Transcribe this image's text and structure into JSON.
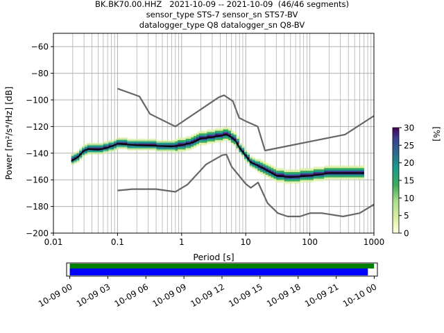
{
  "title_lines": [
    "BK.BK70.00.HHZ   2021-10-09 -- 2021-10-09  (46/46 segments)",
    "sensor_type STS-7 sensor_sn STS7-BV",
    "datalogger_type Q8 datalogger_sn Q8-BV"
  ],
  "chart_data": [
    {
      "type": "heatmap",
      "xlabel": "Period [s]",
      "ylabel": "Power [m²/s⁴/Hz] [dB]",
      "xscale": "log",
      "xlim": [
        0.01,
        1000
      ],
      "ylim": [
        -200,
        -50
      ],
      "x_ticks": [
        0.01,
        0.1,
        1,
        10,
        100,
        1000
      ],
      "x_tick_labels": [
        "0.01",
        "0.1",
        "1",
        "10",
        "100",
        "1000"
      ],
      "y_ticks": [
        -200,
        -180,
        -160,
        -140,
        -120,
        -100,
        -80,
        -60
      ],
      "y_tick_labels": [
        "−200",
        "−180",
        "−160",
        "−140",
        "−120",
        "−100",
        "−80",
        "−60"
      ],
      "grid": true,
      "colorbar": {
        "label": "[%]",
        "range": [
          0,
          30
        ],
        "ticks": [
          0,
          5,
          10,
          15,
          20,
          25,
          30
        ],
        "tick_labels": [
          "0",
          "5",
          "10",
          "15",
          "20",
          "25",
          "30"
        ],
        "colormap": [
          "#ffffe0",
          "#d9f0a3",
          "#addd8e",
          "#41ab5d",
          "#1d9e8a",
          "#2c6f8e",
          "#3b3f8f",
          "#440154"
        ]
      },
      "series": [
        {
          "name": "",
          "role": "median",
          "color": "#000000",
          "x": [
            0.019,
            0.024,
            0.03,
            0.035,
            0.05,
            0.07,
            0.1,
            0.2,
            0.4,
            0.7,
            1,
            1.5,
            2,
            3,
            4,
            5,
            6,
            7,
            8,
            10,
            12,
            15,
            20,
            30,
            50,
            100,
            200,
            400,
            700
          ],
          "y": [
            -146,
            -143,
            -138,
            -137,
            -137.5,
            -136,
            -133,
            -134,
            -134.5,
            -135,
            -134,
            -132,
            -129,
            -128,
            -127,
            -126,
            -128,
            -131,
            -136,
            -142,
            -147,
            -149,
            -152,
            -157,
            -158,
            -157,
            -155,
            -155,
            -155
          ]
        },
        {
          "name": "",
          "role": "high noise model",
          "color": "#666666",
          "x": [
            0.1,
            0.22,
            0.32,
            0.8,
            3.8,
            4.6,
            6.3,
            7.9,
            10,
            15.4,
            20,
            354.8,
            1000
          ],
          "y": [
            -91.5,
            -97.4,
            -110.5,
            -120,
            -98,
            -96.5,
            -101,
            -113.5,
            -116,
            -120,
            -138,
            -126,
            -112
          ]
        },
        {
          "name": "",
          "role": "low noise model",
          "color": "#666666",
          "x": [
            0.1,
            0.17,
            0.4,
            0.8,
            1.24,
            2.4,
            4.3,
            5,
            6,
            10,
            12,
            15.6,
            21.9,
            31.6,
            45,
            70,
            101,
            154,
            328,
            600,
            1000
          ],
          "y": [
            -168,
            -167,
            -167,
            -169,
            -163.5,
            -148.5,
            -141.5,
            -141,
            -150,
            -163,
            -166,
            -162,
            -177.5,
            -185,
            -187.5,
            -187.5,
            -185,
            -185,
            -187.5,
            -185,
            -178.5
          ]
        }
      ]
    },
    {
      "type": "bar",
      "x_tick_labels": [
        "10-09 00",
        "10-09 03",
        "10-09 06",
        "10-09 09",
        "10-09 12",
        "10-09 15",
        "10-09 18",
        "10-09 21",
        "10-10 00"
      ],
      "xlim": [
        "2021-10-08 23:45",
        "2021-10-10 00:15"
      ],
      "series": [
        {
          "name": "",
          "color": "#008000",
          "start": "2021-10-09 00:00",
          "end": "2021-10-09 23:59"
        },
        {
          "name": "",
          "color": "#0000ff",
          "start": "2021-10-09 00:00",
          "end": "2021-10-09 23:30"
        }
      ]
    }
  ]
}
